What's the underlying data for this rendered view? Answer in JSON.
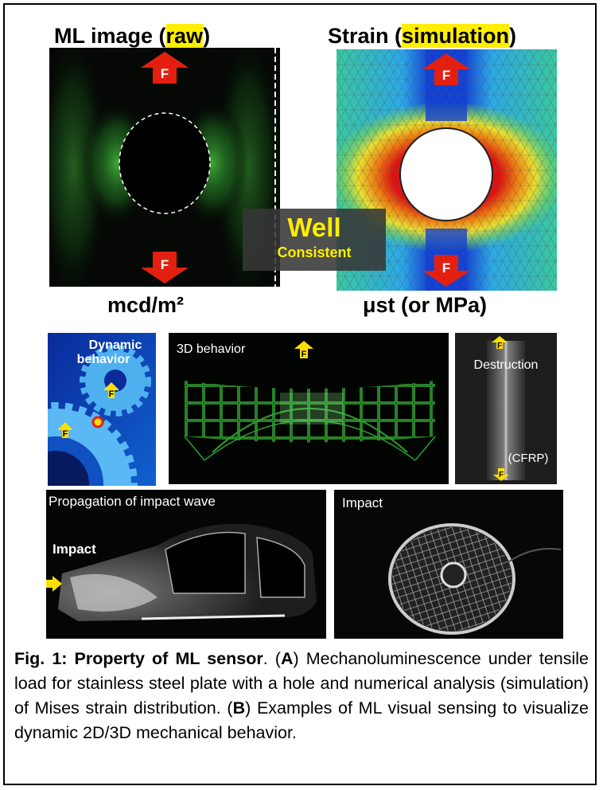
{
  "top_left": {
    "title_before": "ML image (",
    "title_highlight": "raw",
    "title_after": ")",
    "unit": "mcd/m²"
  },
  "top_right": {
    "title_before": "Strain (",
    "title_highlight": "simulation",
    "title_after": ")",
    "unit": "μst (or MPa)"
  },
  "force_label": "F",
  "overlay": {
    "line1": "Well",
    "line2": "Consistent"
  },
  "gear": {
    "label_lines": [
      "Dynamic",
      "behavior"
    ]
  },
  "behavior_3d": {
    "label": "3D behavior"
  },
  "destruction": {
    "label": "Destruction",
    "material": "(CFRP)"
  },
  "impact_wave": {
    "title": "Propagation of impact wave",
    "point": "Impact"
  },
  "impact": {
    "title": "Impact"
  },
  "caption": {
    "segments": [
      {
        "text": "Fig. 1: Property of ML sensor",
        "bold": true
      },
      {
        "text": ". (",
        "bold": false
      },
      {
        "text": "A",
        "bold": true
      },
      {
        "text": ") Mechanoluminescence under tensile load for stainless steel plate with a hole and numerical analysis (simulation) of Mises strain distribution. (",
        "bold": false
      },
      {
        "text": "B",
        "bold": true
      },
      {
        "text": ") Examples of ML visual sensing to visualize dynamic 2D/3D mechanical behavior.",
        "bold": false
      }
    ]
  }
}
